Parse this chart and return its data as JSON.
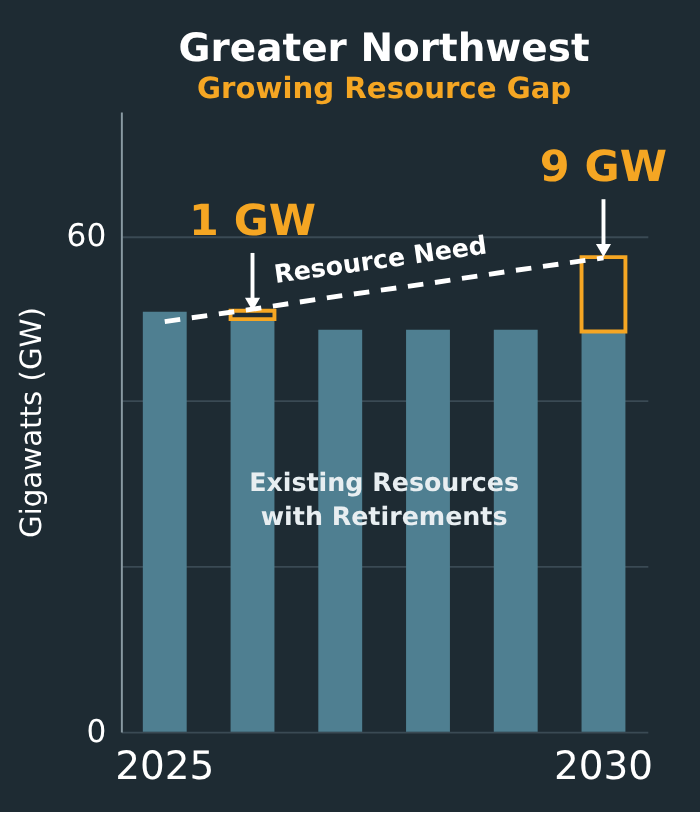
{
  "chart_data": {
    "type": "bar",
    "title": "Greater Northwest",
    "subtitle": "Growing Resource Gap",
    "ylabel": "Gigawatts (GW)",
    "categories": [
      "2025",
      null,
      null,
      null,
      null,
      "2030"
    ],
    "stacked": true,
    "series": [
      {
        "color": "#4f7f91",
        "values": [
          50.8,
          49.9,
          48.6,
          48.6,
          48.6,
          48.4
        ]
      },
      {
        "color": "#f5a623",
        "values": [
          null,
          1,
          null,
          null,
          null,
          9
        ],
        "value_labels": [
          null,
          "1 GW",
          null,
          null,
          null,
          "9 GW"
        ]
      },
      {
        "type": "line",
        "color": "#ffffff",
        "line_style": "dashed",
        "values": [
          49.6,
          51.1,
          52.7,
          54.2,
          55.8,
          57.3
        ]
      }
    ],
    "annotations": [
      "Resource Need",
      "Existing Resources\nwith Retirements"
    ],
    "ylim": [
      0,
      75
    ],
    "yticks": [
      0,
      {
        "value": 20,
        "label": null
      },
      {
        "value": 40,
        "label": null
      },
      60
    ],
    "grid": "y"
  }
}
